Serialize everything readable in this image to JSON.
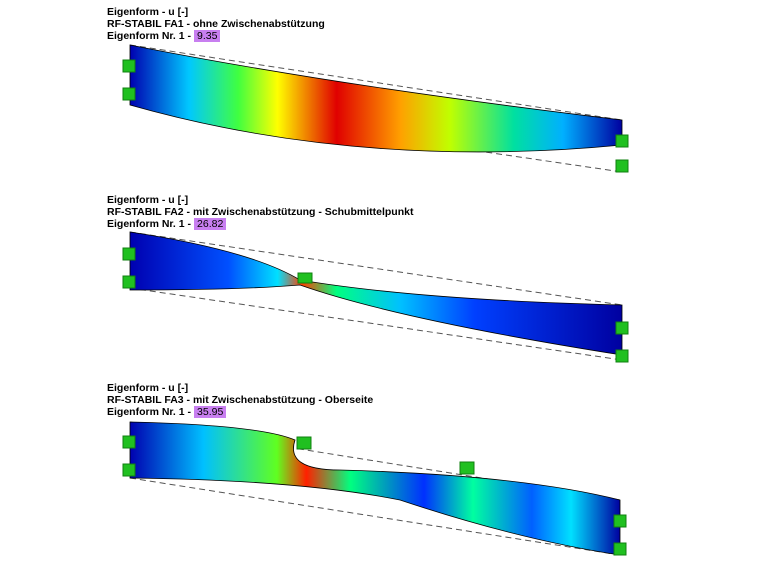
{
  "panels": [
    {
      "line1": "Eigenform - u [-]",
      "line2": "RF-STABIL FA1 - ohne Zwischenabstützung",
      "line3": "Eigenform Nr. 1 -",
      "value": 9.35
    },
    {
      "line1": "Eigenform - u [-]",
      "line2": "RF-STABIL FA2 - mit Zwischenabstützung - Schubmittelpunkt",
      "line3": "Eigenform Nr. 1 -",
      "value": 26.82
    },
    {
      "line1": "Eigenform - u [-]",
      "line2": "RF-STABIL FA3 - mit Zwischenabstützung - Oberseite",
      "line3": "Eigenform Nr. 1 -",
      "value": 35.95
    }
  ]
}
